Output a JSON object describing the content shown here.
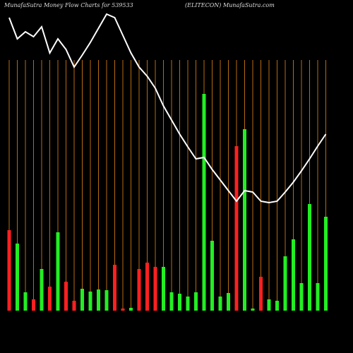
{
  "chart_data": {
    "type": "bar",
    "title": "MunafaSutra  Money Flow  Charts for 539533",
    "subtitle": "(ELITECON) MunafaSutra.com",
    "categories": [
      null,
      null,
      null,
      null,
      null,
      null,
      null,
      null,
      null,
      null,
      null,
      null,
      null,
      null,
      null,
      null,
      null,
      null,
      null,
      null,
      null,
      null,
      null,
      null,
      null,
      null,
      null,
      null,
      null,
      null,
      null,
      null,
      null,
      null,
      null,
      null,
      null,
      null,
      null,
      null
    ],
    "ylim": [
      0,
      440
    ],
    "grid_color": "#b86a12",
    "series": [
      {
        "type": "bar",
        "values": [
          114,
          95,
          26,
          16,
          59,
          34,
          111,
          41,
          14,
          31,
          27,
          30,
          29,
          65,
          3,
          4,
          59,
          68,
          62,
          62,
          26,
          24,
          20,
          26,
          307,
          99,
          20,
          25,
          233,
          257,
          3,
          48,
          16,
          14,
          77,
          101,
          39,
          151,
          39,
          133
        ],
        "colors": [
          "#ff2020",
          "#22ee22",
          "#22ee22",
          "#ff2020",
          "#22ee22",
          "#ff2020",
          "#22ee22",
          "#ff2020",
          "#ff2020",
          "#22ee22",
          "#22ee22",
          "#22ee22",
          "#22ee22",
          "#ff2020",
          "#ff2020",
          "#22ee22",
          "#ff2020",
          "#ff2020",
          "#ff2020",
          "#22ee22",
          "#22ee22",
          "#22ee22",
          "#22ee22",
          "#22ee22",
          "#22ee22",
          "#22ee22",
          "#22ee22",
          "#22ee22",
          "#ff2020",
          "#22ee22",
          "#22ee22",
          "#ff2020",
          "#22ee22",
          "#22ee22",
          "#22ee22",
          "#22ee22",
          "#22ee22",
          "#22ee22",
          "#22ee22",
          "#22ee22"
        ]
      },
      {
        "type": "line",
        "color": "#ffffff",
        "values": [
          415,
          385,
          395,
          388,
          402,
          365,
          385,
          370,
          345,
          362,
          380,
          400,
          420,
          415,
          390,
          365,
          345,
          332,
          315,
          290,
          270,
          250,
          232,
          215,
          217,
          200,
          185,
          170,
          155,
          170,
          168,
          155,
          153,
          155,
          168,
          182,
          198,
          215,
          233,
          250
        ]
      }
    ]
  }
}
